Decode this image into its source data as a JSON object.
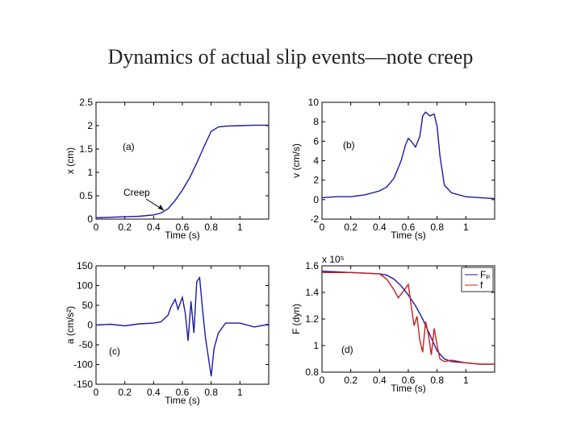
{
  "slide": {
    "title": "Dynamics of actual slip events—note creep"
  },
  "chart_data": [
    {
      "type": "line",
      "panel": "(a)",
      "xlabel": "Time (s)",
      "ylabel": "x (cm)",
      "xlim": [
        0,
        1.2
      ],
      "ylim": [
        0,
        2.5
      ],
      "xticks": [
        "0",
        "0.2",
        "0.4",
        "0.6",
        "0.8",
        "1"
      ],
      "yticks": [
        "0",
        "0.5",
        "1",
        "1.5",
        "2",
        "2.5"
      ],
      "annotation": "Creep",
      "series": [
        {
          "name": "x",
          "color": "#1a1aa6",
          "x": [
            0,
            0.1,
            0.2,
            0.3,
            0.4,
            0.45,
            0.5,
            0.55,
            0.6,
            0.65,
            0.7,
            0.75,
            0.8,
            0.85,
            0.9,
            1.0,
            1.1,
            1.2
          ],
          "y": [
            0.03,
            0.04,
            0.05,
            0.06,
            0.09,
            0.13,
            0.22,
            0.4,
            0.62,
            0.88,
            1.2,
            1.55,
            1.88,
            1.97,
            1.99,
            2.0,
            2.01,
            2.01
          ]
        }
      ]
    },
    {
      "type": "line",
      "panel": "(b)",
      "xlabel": "Time (s)",
      "ylabel": "v (cm/s)",
      "xlim": [
        0,
        1.2
      ],
      "ylim": [
        -2,
        10
      ],
      "xticks": [
        "0",
        "0.2",
        "0.4",
        "0.6",
        "0.8",
        "1"
      ],
      "yticks": [
        "-2",
        "0",
        "2",
        "4",
        "6",
        "8",
        "10"
      ],
      "series": [
        {
          "name": "v",
          "color": "#1a1aa6",
          "x": [
            0,
            0.1,
            0.2,
            0.3,
            0.4,
            0.45,
            0.5,
            0.55,
            0.58,
            0.6,
            0.62,
            0.65,
            0.68,
            0.7,
            0.72,
            0.75,
            0.78,
            0.8,
            0.82,
            0.85,
            0.9,
            1.0,
            1.1,
            1.2
          ],
          "y": [
            0.2,
            0.3,
            0.3,
            0.5,
            0.9,
            1.3,
            2.2,
            4.0,
            5.6,
            6.3,
            6.0,
            5.4,
            6.5,
            8.6,
            9.0,
            8.6,
            8.8,
            7.5,
            4.5,
            1.5,
            0.7,
            0.3,
            0.2,
            0.1
          ]
        }
      ]
    },
    {
      "type": "line",
      "panel": "(c)",
      "xlabel": "Time (s)",
      "ylabel": "a (cm/s²)",
      "xlim": [
        0,
        1.2
      ],
      "ylim": [
        -150,
        150
      ],
      "xticks": [
        "0",
        "0.2",
        "0.4",
        "0.6",
        "0.8",
        "1"
      ],
      "yticks": [
        "-150",
        "-100",
        "-50",
        "0",
        "50",
        "100",
        "150"
      ],
      "series": [
        {
          "name": "a",
          "color": "#1a1aa6",
          "x": [
            0,
            0.1,
            0.2,
            0.3,
            0.4,
            0.45,
            0.5,
            0.52,
            0.55,
            0.57,
            0.6,
            0.62,
            0.64,
            0.66,
            0.68,
            0.7,
            0.72,
            0.74,
            0.76,
            0.78,
            0.8,
            0.82,
            0.85,
            0.9,
            1.0,
            1.1,
            1.2
          ],
          "y": [
            0,
            2,
            -2,
            3,
            5,
            8,
            25,
            45,
            65,
            40,
            70,
            30,
            -40,
            60,
            -20,
            110,
            120,
            40,
            -30,
            -80,
            -130,
            -60,
            -20,
            5,
            5,
            -5,
            2
          ]
        }
      ]
    },
    {
      "type": "line",
      "panel": "(d)",
      "xlabel": "Time (s)",
      "ylabel": "F (dyn)",
      "exponent": "x 10⁵",
      "xlim": [
        0,
        1.2
      ],
      "ylim": [
        0.8,
        1.6
      ],
      "xticks": [
        "0",
        "0.2",
        "0.4",
        "0.6",
        "0.8",
        "1"
      ],
      "yticks": [
        "0.8",
        "1",
        "1.2",
        "1.4",
        "1.6"
      ],
      "legend": [
        "Fₚ",
        "f"
      ],
      "series": [
        {
          "name": "Fp",
          "color": "#1a1aa6",
          "x": [
            0,
            0.2,
            0.4,
            0.45,
            0.5,
            0.55,
            0.6,
            0.65,
            0.7,
            0.75,
            0.8,
            0.85,
            0.9,
            1.0,
            1.1,
            1.2
          ],
          "y": [
            1.56,
            1.55,
            1.54,
            1.53,
            1.5,
            1.45,
            1.38,
            1.3,
            1.2,
            1.08,
            0.96,
            0.9,
            0.88,
            0.87,
            0.86,
            0.86
          ]
        },
        {
          "name": "f",
          "color": "#c81e1e",
          "x": [
            0,
            0.2,
            0.4,
            0.45,
            0.5,
            0.53,
            0.56,
            0.6,
            0.62,
            0.64,
            0.66,
            0.68,
            0.7,
            0.72,
            0.74,
            0.76,
            0.78,
            0.8,
            0.82,
            0.85,
            0.9,
            1.0,
            1.1,
            1.2
          ],
          "y": [
            1.55,
            1.55,
            1.54,
            1.5,
            1.42,
            1.36,
            1.4,
            1.46,
            1.3,
            1.15,
            1.22,
            1.04,
            0.95,
            1.18,
            1.08,
            0.93,
            1.13,
            1.0,
            0.9,
            0.88,
            0.89,
            0.87,
            0.86,
            0.86
          ]
        }
      ]
    }
  ]
}
